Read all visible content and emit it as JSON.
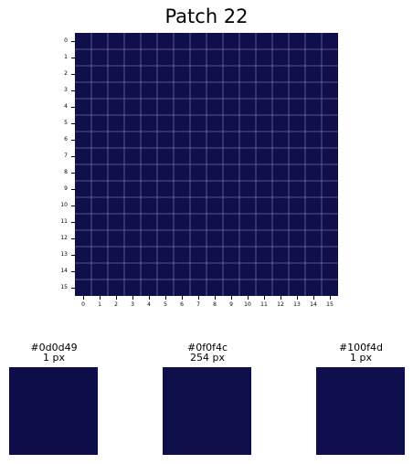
{
  "chart_data": {
    "type": "heatmap",
    "title": "Patch 22",
    "rows": 16,
    "cols": 16,
    "x_tick_labels": [
      "0",
      "1",
      "2",
      "3",
      "4",
      "5",
      "6",
      "7",
      "8",
      "9",
      "10",
      "11",
      "12",
      "13",
      "14",
      "15"
    ],
    "y_tick_labels": [
      "0",
      "1",
      "2",
      "3",
      "4",
      "5",
      "6",
      "7",
      "8",
      "9",
      "10",
      "11",
      "12",
      "13",
      "14",
      "15"
    ],
    "fill_color": "#0f0f4c",
    "grid": true,
    "grid_color": "#6e6e9a"
  },
  "swatches": [
    {
      "hex": "#0d0d49",
      "count": "1 px",
      "color": "#0d0d49"
    },
    {
      "hex": "#0f0f4c",
      "count": "254 px",
      "color": "#0f0f4c"
    },
    {
      "hex": "#100f4d",
      "count": "1 px",
      "color": "#100f4d"
    }
  ]
}
